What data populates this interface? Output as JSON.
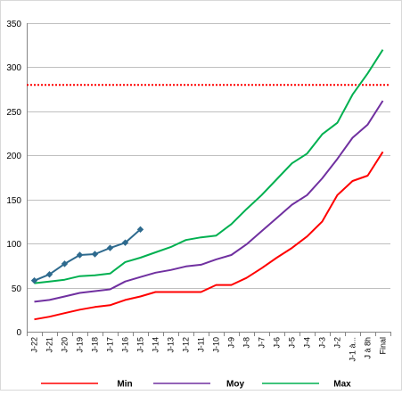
{
  "chart_data": {
    "type": "line",
    "title": "",
    "xlabel": "",
    "ylabel": "",
    "ylim": [
      0,
      350
    ],
    "y_ticks": [
      0,
      50,
      100,
      150,
      200,
      250,
      300,
      350
    ],
    "grid": true,
    "legend_position": "bottom",
    "categories": [
      "J-22",
      "J-21",
      "J-20",
      "J-19",
      "J-18",
      "J-17",
      "J-16",
      "J-15",
      "J-14",
      "J-13",
      "J-12",
      "J-11",
      "J-10",
      "J-9",
      "J-8",
      "J-7",
      "J-6",
      "J-5",
      "J-4",
      "J-3",
      "J-2",
      "J-1 à...",
      "J à 8h",
      "Final"
    ],
    "reference_line": {
      "value": 280,
      "color": "#ff0000",
      "style": "dotted"
    },
    "series": [
      {
        "name": "Min",
        "color": "#ff0000",
        "in_legend": true,
        "markers": false,
        "values": [
          14,
          17,
          21,
          25,
          28,
          30,
          36,
          40,
          45,
          45,
          45,
          45,
          53,
          53,
          61,
          72,
          84,
          95,
          108,
          125,
          155,
          171,
          177,
          204
        ]
      },
      {
        "name": "Moy",
        "color": "#7030a0",
        "in_legend": true,
        "markers": false,
        "values": [
          34,
          36,
          40,
          44,
          46,
          48,
          57,
          62,
          67,
          70,
          74,
          76,
          82,
          87,
          99,
          114,
          129,
          144,
          155,
          174,
          196,
          220,
          235,
          262
        ]
      },
      {
        "name": "Max",
        "color": "#00b050",
        "in_legend": true,
        "markers": false,
        "values": [
          55,
          57,
          59,
          63,
          64,
          66,
          79,
          84,
          90,
          96,
          104,
          107,
          109,
          122,
          139,
          155,
          173,
          191,
          202,
          224,
          237,
          269,
          293,
          320
        ]
      },
      {
        "name": "",
        "color": "#2e6a8e",
        "in_legend": false,
        "markers": true,
        "values": [
          58,
          65,
          77,
          87,
          88,
          95,
          101,
          116,
          null,
          null,
          null,
          null,
          null,
          null,
          null,
          null,
          null,
          null,
          null,
          null,
          null,
          null,
          null,
          null
        ]
      }
    ]
  }
}
